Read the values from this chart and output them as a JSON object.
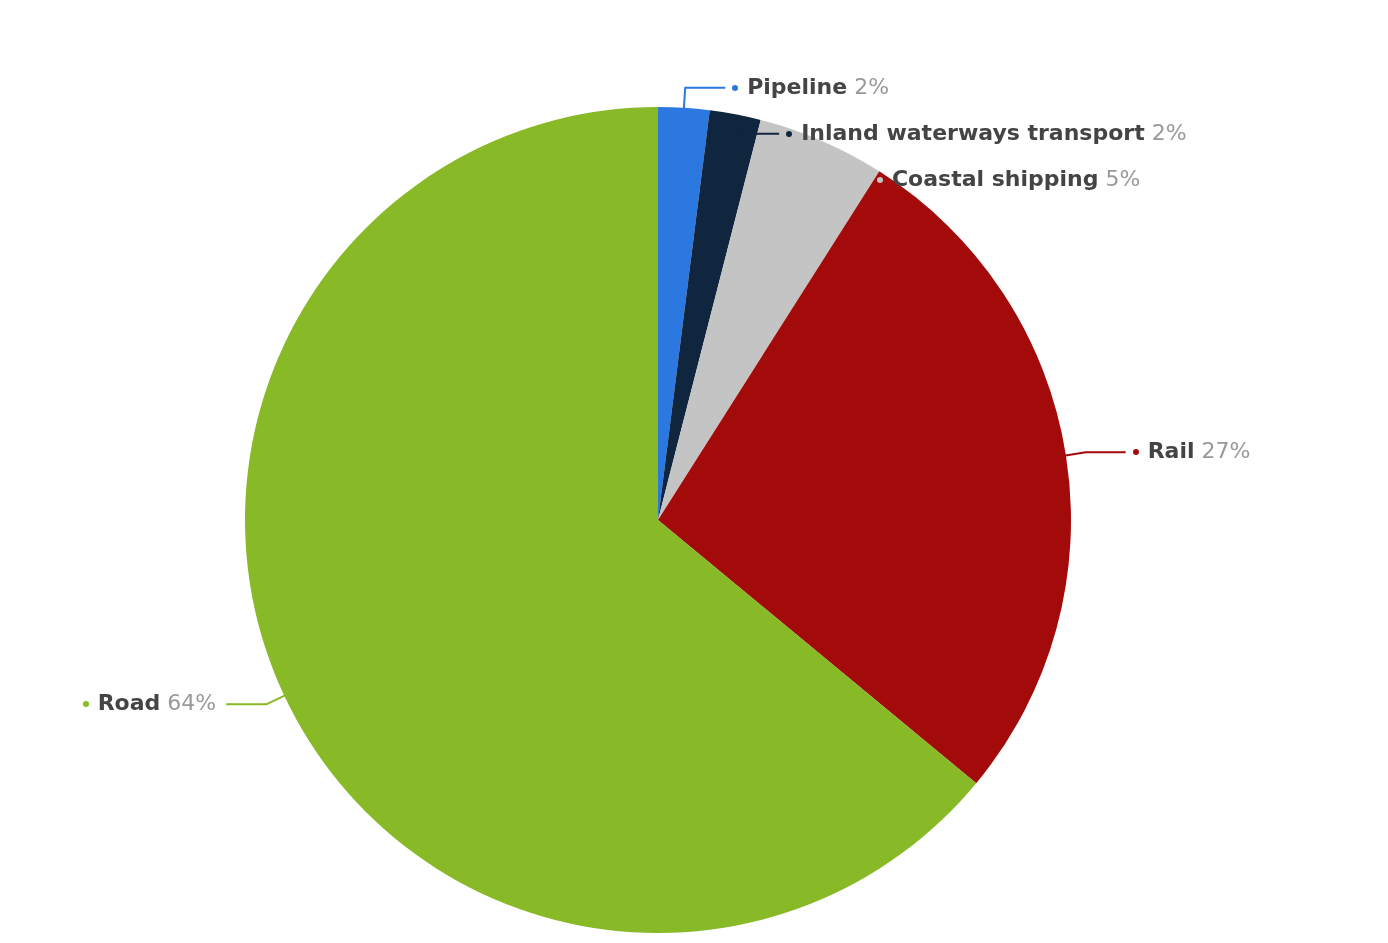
{
  "chart_data": {
    "type": "pie",
    "categories": [
      "Pipeline",
      "Inland waterways transport",
      "Coastal shipping",
      "Rail",
      "Road"
    ],
    "values": [
      2,
      2,
      5,
      27,
      64
    ],
    "value_labels": [
      "2%",
      "2%",
      "5%",
      "27%",
      "64%"
    ],
    "colors": [
      "#2a78e0",
      "#10263e",
      "#c4c4c4",
      "#a30a0a",
      "#88b926"
    ],
    "legend": "right"
  }
}
